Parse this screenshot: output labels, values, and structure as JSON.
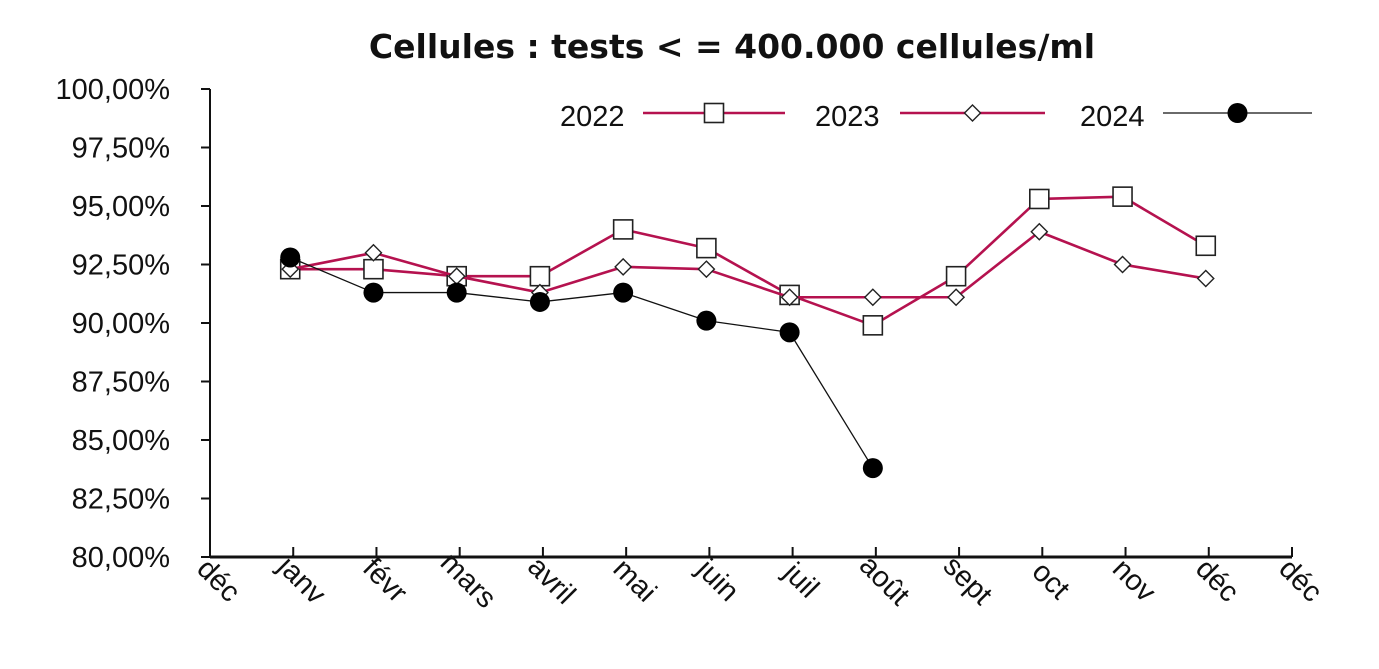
{
  "chart_data": {
    "type": "line",
    "title": "Cellules : tests < = 400.000 cellules/ml",
    "xlabel": "",
    "ylabel": "",
    "x_tick_labels": [
      "déc",
      "janv",
      "févr",
      "mars",
      "avril",
      "mai",
      "juin",
      "juil",
      "août",
      "sept",
      "oct",
      "nov",
      "déc",
      "déc"
    ],
    "y_tick_labels": [
      "100,00%",
      "97,50%",
      "95,00%",
      "92,50%",
      "90,00%",
      "87,50%",
      "85,00%",
      "82,50%",
      "80,00%"
    ],
    "ylim": [
      80,
      100
    ],
    "grid": false,
    "legend_position": "top-right",
    "categories": [
      "janv",
      "févr",
      "mars",
      "avril",
      "mai",
      "juin",
      "juil",
      "août",
      "sept",
      "oct",
      "nov",
      "déc"
    ],
    "series": [
      {
        "name": "2022",
        "color": "#b5124f",
        "marker": "square",
        "values": [
          92.3,
          92.3,
          92.0,
          92.0,
          94.0,
          93.2,
          91.2,
          89.9,
          92.0,
          95.3,
          95.4,
          93.3
        ]
      },
      {
        "name": "2023",
        "color": "#b5124f",
        "marker": "diamond",
        "values": [
          92.3,
          93.0,
          92.0,
          91.3,
          92.4,
          92.3,
          91.1,
          91.1,
          91.1,
          93.9,
          92.5,
          91.9
        ]
      },
      {
        "name": "2024",
        "color": "#111111",
        "marker": "circle",
        "values": [
          92.8,
          91.3,
          91.3,
          90.9,
          91.3,
          90.1,
          89.6,
          83.8,
          null,
          null,
          null,
          null
        ]
      }
    ]
  }
}
